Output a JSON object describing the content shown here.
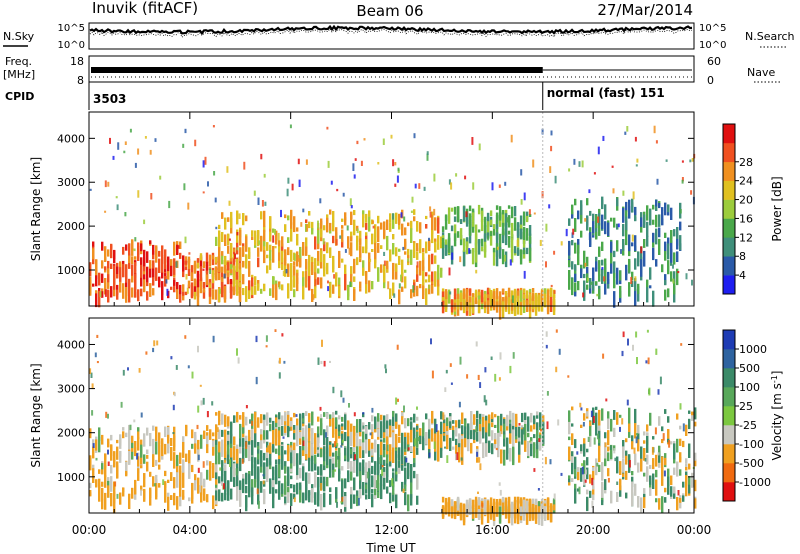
{
  "header": {
    "station": "Inuvik (fitACF)",
    "beam": "Beam 06",
    "date": "27/Mar/2014"
  },
  "noise_panel": {
    "left_label": "N.Sky",
    "right_label": "N.Search",
    "left_ticks": [
      "10^5",
      "10^0"
    ],
    "right_ticks": [
      "10^5",
      "10^0"
    ]
  },
  "freq_panel": {
    "left_label_1": "Freq.",
    "left_label_2": "[MHz]",
    "right_label": "Nave",
    "left_ticks": [
      "18",
      "8"
    ],
    "right_ticks": [
      "60",
      "0"
    ]
  },
  "cpid_panel": {
    "label": "CPID",
    "segments": [
      {
        "start_hour": 0,
        "text": "3503"
      },
      {
        "start_hour": 18,
        "text": "normal (fast) 151"
      }
    ]
  },
  "time_axis": {
    "label": "Time UT",
    "range_hours": [
      0,
      24
    ],
    "ticks": [
      {
        "hour": 0,
        "label": "00:00"
      },
      {
        "hour": 4,
        "label": "04:00"
      },
      {
        "hour": 8,
        "label": "08:00"
      },
      {
        "hour": 12,
        "label": "12:00"
      },
      {
        "hour": 16,
        "label": "16:00"
      },
      {
        "hour": 20,
        "label": "20:00"
      },
      {
        "hour": 24,
        "label": "00:00"
      }
    ]
  },
  "chart_data": [
    {
      "type": "heatmap",
      "parameter": "power",
      "ylabel": "Slant Range [km]",
      "ylim": [
        180,
        4600
      ],
      "yticks": [
        1000,
        2000,
        3000,
        4000
      ],
      "colorbar": {
        "label": "Power [dB]",
        "ticks": [
          "4",
          "8",
          "12",
          "16",
          "20",
          "24",
          "28"
        ],
        "colors": [
          "#1e1ef0",
          "#2a5aa8",
          "#3f8f7a",
          "#4aa84a",
          "#9ccc3c",
          "#e0c020",
          "#f09020",
          "#f05020",
          "#e01010"
        ]
      },
      "regions": [
        {
          "t": [
            0,
            3.8
          ],
          "r": [
            500,
            1700
          ],
          "value": 28
        },
        {
          "t": [
            3.8,
            6
          ],
          "r": [
            500,
            1400
          ],
          "value": 26
        },
        {
          "t": [
            5,
            14
          ],
          "r": [
            550,
            2400
          ],
          "value": 22
        },
        {
          "t": [
            14,
            17.5
          ],
          "r": [
            1400,
            2500
          ],
          "value": 12
        },
        {
          "t": [
            14,
            18.5
          ],
          "r": [
            250,
            600
          ],
          "value": 22
        },
        {
          "t": [
            19,
            23.5
          ],
          "r": [
            500,
            2700
          ],
          "value": 8
        }
      ]
    },
    {
      "type": "heatmap",
      "parameter": "velocity",
      "ylabel": "Slant Range [km]",
      "ylim": [
        180,
        4600
      ],
      "yticks": [
        1000,
        2000,
        3000,
        4000
      ],
      "colorbar": {
        "label": "Velocity [m s^-1]",
        "ticks": [
          "1000",
          "500",
          "100",
          "25",
          "-25",
          "-100",
          "-500",
          "-1000"
        ],
        "colors": [
          "#1e3cb4",
          "#2e63a0",
          "#3b8a68",
          "#58a85a",
          "#7cc840",
          "#c8c8c0",
          "#f0a020",
          "#f06a10",
          "#e01010"
        ]
      },
      "regions": [
        {
          "t": [
            0,
            5
          ],
          "r": [
            500,
            2200
          ],
          "value": -200
        },
        {
          "t": [
            5,
            13
          ],
          "r": [
            550,
            1700
          ],
          "value": 200
        },
        {
          "t": [
            5,
            18
          ],
          "r": [
            1600,
            2500
          ],
          "value": 0
        },
        {
          "t": [
            14,
            18.5
          ],
          "r": [
            250,
            550
          ],
          "value": -200
        },
        {
          "t": [
            19,
            24
          ],
          "r": [
            500,
            2600
          ],
          "value": 0
        }
      ]
    }
  ]
}
